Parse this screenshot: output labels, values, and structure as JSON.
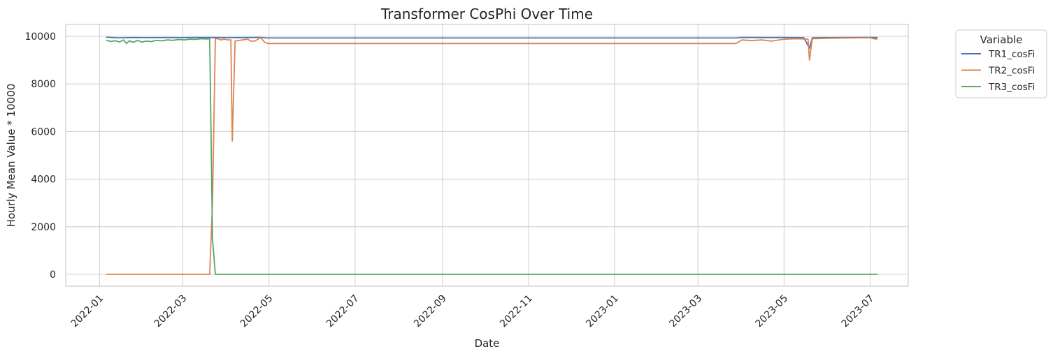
{
  "chart_data": {
    "type": "line",
    "title": "Transformer CosPhi Over Time",
    "xlabel": "Date",
    "ylabel": "Hourly Mean Value * 10000",
    "x_ticks": [
      "2022-01",
      "2022-03",
      "2022-05",
      "2022-07",
      "2022-09",
      "2022-11",
      "2023-01",
      "2023-03",
      "2023-05",
      "2023-07"
    ],
    "y_ticks": [
      0,
      2000,
      4000,
      6000,
      8000,
      10000
    ],
    "ylim": [
      -500,
      10500
    ],
    "xlim": [
      "2021-12-08",
      "2023-07-28"
    ],
    "grid": true,
    "legend": {
      "title": "Variable",
      "placement": "outside-top-right"
    },
    "series": [
      {
        "name": "TR1_cosFi",
        "color": "#4c72b0",
        "points": [
          [
            "2022-01-06",
            9960
          ],
          [
            "2022-01-15",
            9940
          ],
          [
            "2022-01-25",
            9950
          ],
          [
            "2022-02-05",
            9945
          ],
          [
            "2022-02-18",
            9950
          ],
          [
            "2022-03-01",
            9945
          ],
          [
            "2022-03-12",
            9950
          ],
          [
            "2022-03-22",
            9950
          ],
          [
            "2022-04-01",
            9945
          ],
          [
            "2022-04-15",
            9950
          ],
          [
            "2022-04-25",
            9955
          ],
          [
            "2022-04-30",
            9930
          ],
          [
            "2022-06-01",
            9930
          ],
          [
            "2022-08-01",
            9930
          ],
          [
            "2022-10-01",
            9930
          ],
          [
            "2022-12-01",
            9930
          ],
          [
            "2023-02-01",
            9930
          ],
          [
            "2023-03-28",
            9930
          ],
          [
            "2023-04-01",
            9955
          ],
          [
            "2023-04-15",
            9950
          ],
          [
            "2023-05-01",
            9950
          ],
          [
            "2023-05-15",
            9945
          ],
          [
            "2023-05-19",
            9500
          ],
          [
            "2023-05-21",
            9940
          ],
          [
            "2023-06-01",
            9945
          ],
          [
            "2023-06-15",
            9950
          ],
          [
            "2023-07-01",
            9955
          ],
          [
            "2023-07-06",
            9950
          ]
        ]
      },
      {
        "name": "TR2_cosFi",
        "color": "#dd8452",
        "points": [
          [
            "2022-01-06",
            0
          ],
          [
            "2022-03-20",
            0
          ],
          [
            "2022-03-22",
            3000
          ],
          [
            "2022-03-24",
            9900
          ],
          [
            "2022-03-26",
            9900
          ],
          [
            "2022-03-28",
            9850
          ],
          [
            "2022-03-30",
            9880
          ],
          [
            "2022-04-02",
            9850
          ],
          [
            "2022-04-04",
            9850
          ],
          [
            "2022-04-05",
            5600
          ],
          [
            "2022-04-07",
            9800
          ],
          [
            "2022-04-12",
            9850
          ],
          [
            "2022-04-16",
            9880
          ],
          [
            "2022-04-18",
            9800
          ],
          [
            "2022-04-21",
            9800
          ],
          [
            "2022-04-23",
            9870
          ],
          [
            "2022-04-25",
            9950
          ],
          [
            "2022-04-28",
            9750
          ],
          [
            "2022-04-30",
            9700
          ],
          [
            "2022-07-01",
            9700
          ],
          [
            "2022-10-01",
            9700
          ],
          [
            "2023-01-01",
            9700
          ],
          [
            "2023-03-28",
            9700
          ],
          [
            "2023-04-01",
            9850
          ],
          [
            "2023-04-08",
            9820
          ],
          [
            "2023-04-15",
            9850
          ],
          [
            "2023-04-22",
            9800
          ],
          [
            "2023-05-01",
            9880
          ],
          [
            "2023-05-10",
            9900
          ],
          [
            "2023-05-18",
            9880
          ],
          [
            "2023-05-19",
            9000
          ],
          [
            "2023-05-21",
            9900
          ],
          [
            "2023-06-01",
            9920
          ],
          [
            "2023-06-15",
            9930
          ],
          [
            "2023-07-01",
            9940
          ],
          [
            "2023-07-05",
            9880
          ],
          [
            "2023-07-06",
            9900
          ]
        ]
      },
      {
        "name": "TR3_cosFi",
        "color": "#55a868",
        "points": [
          [
            "2022-01-06",
            9830
          ],
          [
            "2022-01-09",
            9780
          ],
          [
            "2022-01-12",
            9820
          ],
          [
            "2022-01-15",
            9760
          ],
          [
            "2022-01-18",
            9850
          ],
          [
            "2022-01-20",
            9700
          ],
          [
            "2022-01-22",
            9810
          ],
          [
            "2022-01-25",
            9750
          ],
          [
            "2022-01-28",
            9830
          ],
          [
            "2022-01-31",
            9760
          ],
          [
            "2022-02-03",
            9800
          ],
          [
            "2022-02-07",
            9780
          ],
          [
            "2022-02-10",
            9830
          ],
          [
            "2022-02-14",
            9810
          ],
          [
            "2022-02-18",
            9850
          ],
          [
            "2022-02-22",
            9830
          ],
          [
            "2022-02-26",
            9870
          ],
          [
            "2022-03-02",
            9850
          ],
          [
            "2022-03-06",
            9880
          ],
          [
            "2022-03-10",
            9870
          ],
          [
            "2022-03-14",
            9900
          ],
          [
            "2022-03-18",
            9890
          ],
          [
            "2022-03-20",
            9900
          ],
          [
            "2022-03-22",
            1500
          ],
          [
            "2022-03-24",
            0
          ],
          [
            "2022-06-01",
            0
          ],
          [
            "2022-09-01",
            0
          ],
          [
            "2022-12-01",
            0
          ],
          [
            "2023-03-01",
            0
          ],
          [
            "2023-06-01",
            0
          ],
          [
            "2023-07-06",
            0
          ]
        ]
      }
    ]
  }
}
